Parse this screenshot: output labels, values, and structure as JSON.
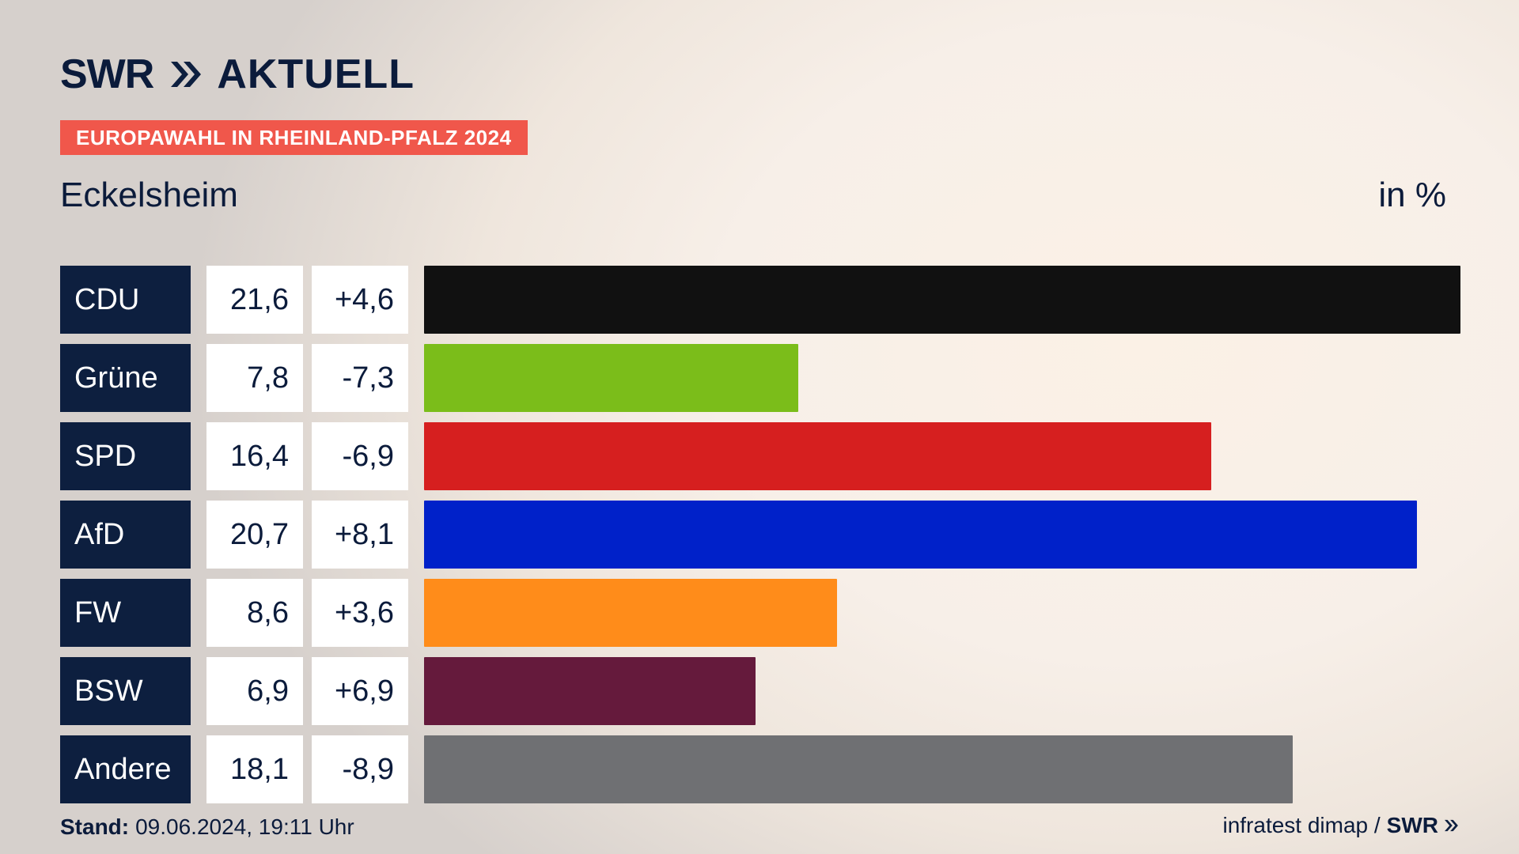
{
  "brand": {
    "swr": "SWR",
    "aktuell": "AKTUELL",
    "logo_icon": "double-chevron-right-icon",
    "colors": {
      "navy": "#0d1f3f",
      "accent": "#f0574b"
    }
  },
  "header": {
    "badge": "EUROPAWAHL IN RHEINLAND-PFALZ 2024",
    "place": "Eckelsheim",
    "unit": "in %"
  },
  "chart_data": {
    "type": "bar",
    "categories": [
      "CDU",
      "Grüne",
      "SPD",
      "AfD",
      "FW",
      "BSW",
      "Andere"
    ],
    "values": [
      21.6,
      7.8,
      16.4,
      20.7,
      8.6,
      6.9,
      18.1
    ],
    "value_labels": [
      "21,6",
      "7,8",
      "16,4",
      "20,7",
      "8,6",
      "6,9",
      "18,1"
    ],
    "change_labels": [
      "+4,6",
      "-7,3",
      "-6,9",
      "+8,1",
      "+3,6",
      "+6,9",
      "-8,9"
    ],
    "colors": [
      "#111111",
      "#7bbd1a",
      "#d61f1f",
      "#0021c9",
      "#ff8c1a",
      "#651a3c",
      "#6f7073"
    ],
    "xlim": [
      0,
      21.6
    ],
    "title": "",
    "xlabel": "",
    "ylabel": ""
  },
  "footer": {
    "stand_label": "Stand:",
    "stand_value": "09.06.2024, 19:11 Uhr",
    "source": "infratest dimap /",
    "source_brand": "SWR",
    "source_icon": "double-chevron-right-icon"
  }
}
